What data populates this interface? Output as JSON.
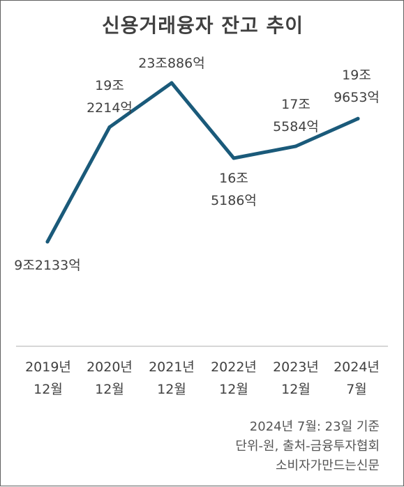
{
  "chart_data": {
    "type": "line",
    "title": "신용거래융자 잔고 추이",
    "categories": [
      [
        "2019년",
        "12월"
      ],
      [
        "2020년",
        "12월"
      ],
      [
        "2021년",
        "12월"
      ],
      [
        "2022년",
        "12월"
      ],
      [
        "2023년",
        "12월"
      ],
      [
        "2024년",
        "7월"
      ]
    ],
    "series": [
      {
        "values": [
          92133,
          192214,
          230886,
          165186,
          175584,
          199653
        ]
      }
    ],
    "data_labels": [
      [
        "9조2133억"
      ],
      [
        "19조",
        "2214억"
      ],
      [
        "23조886억"
      ],
      [
        "16조",
        "5186억"
      ],
      [
        "17조",
        "5584억"
      ],
      [
        "19조",
        "9653억"
      ]
    ],
    "units": "억원",
    "ylim": [
      0,
      250000
    ],
    "grid": false,
    "legend": "none",
    "line_color": "#1a5a7a",
    "axis_color": "#c8c8c8"
  },
  "notes": [
    "2024년 7월: 23일 기준",
    "단위-원, 출처-금융투자협회",
    "소비자가만드는신문"
  ]
}
